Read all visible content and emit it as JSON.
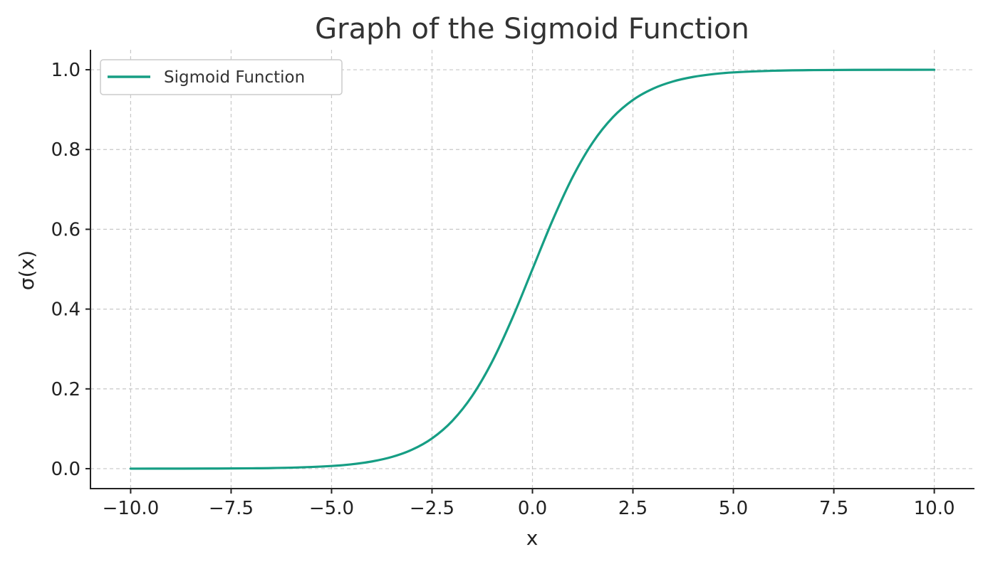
{
  "chart_data": {
    "type": "line",
    "title": "Graph of the Sigmoid Function",
    "xlabel": "x",
    "ylabel": "σ(x)",
    "xlim": [
      -11,
      11
    ],
    "ylim": [
      -0.05,
      1.05
    ],
    "x_ticks": [
      -10,
      -7.5,
      -5,
      -2.5,
      0,
      2.5,
      5,
      7.5,
      10
    ],
    "x_tick_labels": [
      "−10.0",
      "−7.5",
      "−5.0",
      "−2.5",
      "0.0",
      "2.5",
      "5.0",
      "7.5",
      "10.0"
    ],
    "y_ticks": [
      0,
      0.2,
      0.4,
      0.6,
      0.8,
      1.0
    ],
    "y_tick_labels": [
      "0.0",
      "0.2",
      "0.4",
      "0.6",
      "0.8",
      "1.0"
    ],
    "grid": true,
    "legend_position": "top-left",
    "series": [
      {
        "name": "Sigmoid Function",
        "color": "#169e84",
        "x": [
          -10,
          -9,
          -8,
          -7,
          -6,
          -5,
          -4.5,
          -4,
          -3.5,
          -3,
          -2.5,
          -2,
          -1.5,
          -1,
          -0.5,
          0,
          0.5,
          1,
          1.5,
          2,
          2.5,
          3,
          3.5,
          4,
          4.5,
          5,
          6,
          7,
          8,
          9,
          10
        ],
        "y": [
          5e-05,
          0.00012,
          0.00034,
          0.00091,
          0.00247,
          0.00669,
          0.01099,
          0.01799,
          0.02931,
          0.04743,
          0.07586,
          0.1192,
          0.18243,
          0.26894,
          0.37754,
          0.5,
          0.62246,
          0.73106,
          0.81757,
          0.8808,
          0.92414,
          0.95257,
          0.97069,
          0.98201,
          0.98901,
          0.99331,
          0.99753,
          0.99909,
          0.99966,
          0.99988,
          0.99995
        ]
      }
    ]
  }
}
